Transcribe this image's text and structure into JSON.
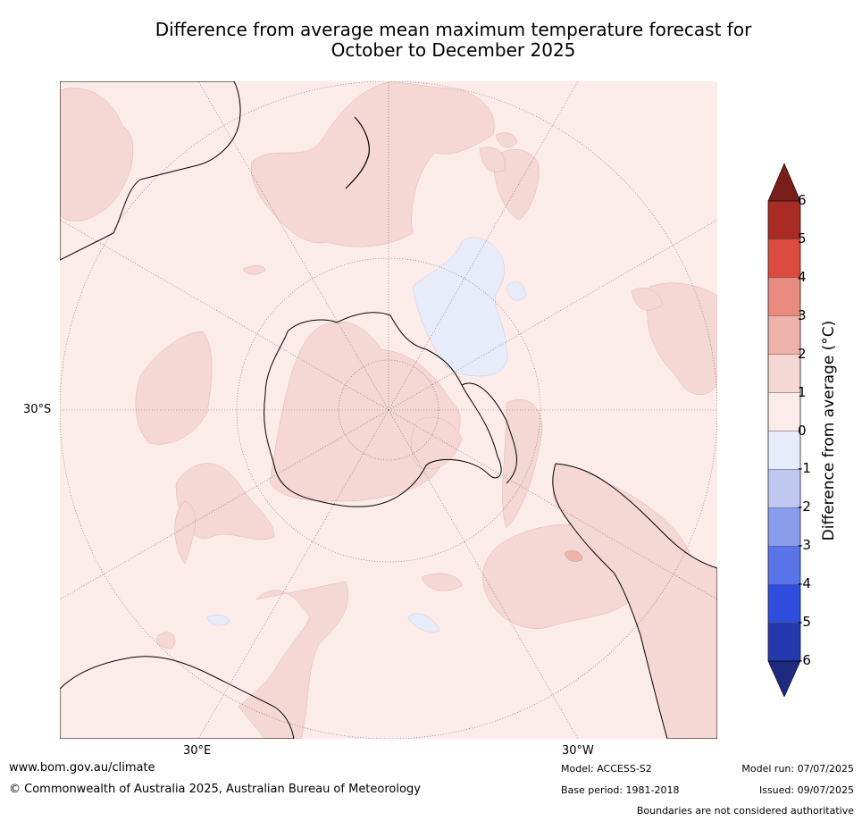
{
  "title_line1": "Difference from average mean maximum temperature forecast for",
  "title_line2": "October to December 2025",
  "map": {
    "latitude_label": "30°S",
    "longitude_labels": [
      "30°E",
      "30°W"
    ]
  },
  "colorbar": {
    "label": "Difference from average (°C)",
    "ticks": [
      "6",
      "5",
      "4",
      "3",
      "2",
      "1",
      "0",
      "-1",
      "-2",
      "-3",
      "-4",
      "-5",
      "-6"
    ],
    "colors": [
      "#7a1e1a",
      "#a92b24",
      "#db4b40",
      "#e88a80",
      "#eeb2aa",
      "#f5d7d3",
      "#fbecea",
      "#e8ecfa",
      "#c0c8f2",
      "#8a9ded",
      "#5a73e8",
      "#2f4ee0",
      "#2439b0",
      "#1d2a80"
    ]
  },
  "footer": {
    "url": "www.bom.gov.au/climate",
    "copyright": "© Commonwealth of Australia 2025, Australian Bureau of Meteorology",
    "model": "Model: ACCESS-S2",
    "base_period": "Base period: 1981-2018",
    "model_run": "Model run: 07/07/2025",
    "issued": "Issued: 09/07/2025",
    "disclaimer": "Boundaries are not considered authoritative"
  }
}
